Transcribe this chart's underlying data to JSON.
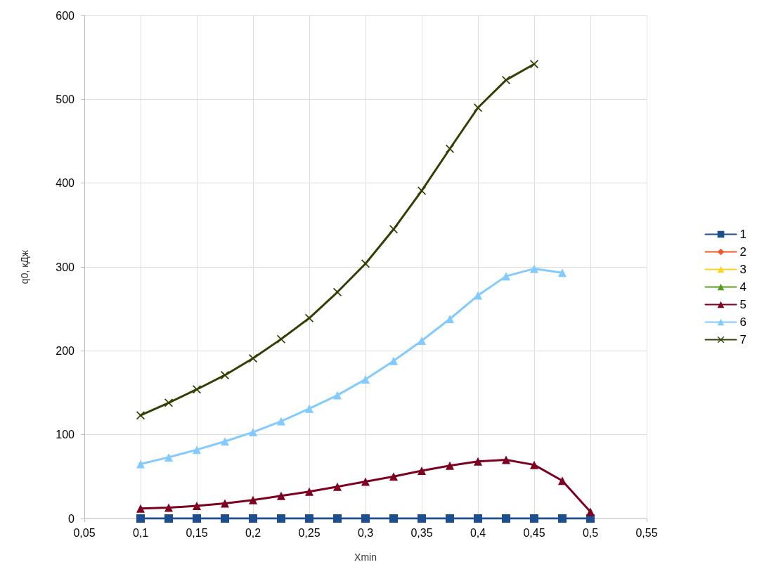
{
  "chart_data": {
    "type": "line",
    "xlabel": "Xmin",
    "ylabel": "q0, кДж",
    "x": [
      0.1,
      0.125,
      0.15,
      0.175,
      0.2,
      0.225,
      0.25,
      0.275,
      0.3,
      0.325,
      0.35,
      0.375,
      0.4,
      0.425,
      0.45,
      0.475,
      0.5
    ],
    "series": [
      {
        "name": "1",
        "color": "#1f4e8c",
        "marker": "square",
        "values": [
          0,
          0,
          0,
          0,
          0,
          0,
          0,
          0,
          0,
          0,
          0,
          0,
          0,
          0,
          0,
          0,
          0
        ]
      },
      {
        "name": "2",
        "color": "#f05a28",
        "marker": "diamond",
        "values": [
          null,
          null,
          null,
          null,
          null,
          null,
          null,
          null,
          null,
          null,
          null,
          null,
          null,
          null,
          null,
          null,
          null
        ]
      },
      {
        "name": "3",
        "color": "#ffd320",
        "marker": "triangle",
        "values": [
          null,
          null,
          null,
          null,
          null,
          null,
          null,
          null,
          null,
          null,
          null,
          null,
          null,
          null,
          null,
          null,
          null
        ]
      },
      {
        "name": "4",
        "color": "#579d1c",
        "marker": "triangle",
        "values": [
          null,
          null,
          null,
          null,
          null,
          null,
          null,
          null,
          null,
          null,
          null,
          null,
          null,
          null,
          null,
          null,
          null
        ]
      },
      {
        "name": "5",
        "color": "#7e0021",
        "marker": "triangle",
        "values": [
          12,
          13,
          15,
          18,
          22,
          27,
          32,
          38,
          44,
          50,
          57,
          63,
          68,
          70,
          64,
          45,
          8
        ]
      },
      {
        "name": "6",
        "color": "#83caff",
        "marker": "triangle",
        "values": [
          65,
          73,
          82,
          92,
          103,
          116,
          131,
          147,
          166,
          188,
          212,
          238,
          266,
          289,
          298,
          293,
          null
        ]
      },
      {
        "name": "7",
        "color": "#314004",
        "marker": "cross",
        "values": [
          123,
          138,
          154,
          171,
          191,
          214,
          239,
          270,
          304,
          345,
          391,
          441,
          490,
          523,
          542,
          null,
          null
        ]
      }
    ],
    "xlim": [
      0.05,
      0.55
    ],
    "xticks": [
      {
        "value": 0.05,
        "label": "0,05"
      },
      {
        "value": 0.1,
        "label": "0,1"
      },
      {
        "value": 0.15,
        "label": "0,15"
      },
      {
        "value": 0.2,
        "label": "0,2"
      },
      {
        "value": 0.25,
        "label": "0,25"
      },
      {
        "value": 0.3,
        "label": "0,3"
      },
      {
        "value": 0.35,
        "label": "0,35"
      },
      {
        "value": 0.4,
        "label": "0,4"
      },
      {
        "value": 0.45,
        "label": "0,45"
      },
      {
        "value": 0.5,
        "label": "0,5"
      },
      {
        "value": 0.55,
        "label": "0,55"
      }
    ],
    "ylim": [
      0,
      600
    ],
    "yticks": [
      0,
      100,
      200,
      300,
      400,
      500,
      600
    ],
    "grid": true,
    "legend": "right",
    "line_style": "solid"
  }
}
